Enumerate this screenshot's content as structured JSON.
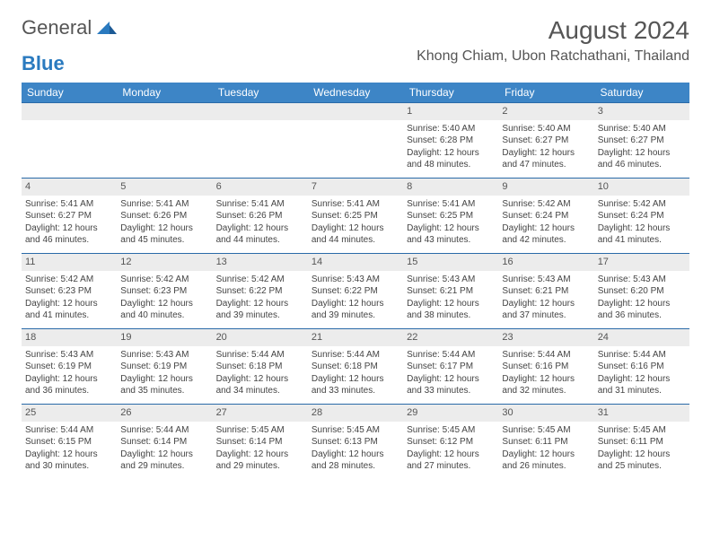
{
  "logo": {
    "text1": "General",
    "text2": "Blue"
  },
  "title": "August 2024",
  "location": "Khong Chiam, Ubon Ratchathani, Thailand",
  "colors": {
    "header_bg": "#3d85c6",
    "header_text": "#ffffff",
    "daynum_bg": "#ececec",
    "rule": "#2a6aa8",
    "body_text": "#444444",
    "title_text": "#555555",
    "logo_gray": "#555555",
    "logo_blue": "#2a7abf",
    "page_bg": "#ffffff"
  },
  "typography": {
    "month_title_pt": 28,
    "location_pt": 16,
    "header_cell_pt": 12,
    "daynum_pt": 11,
    "body_pt": 10,
    "logo_pt": 22
  },
  "day_headers": [
    "Sunday",
    "Monday",
    "Tuesday",
    "Wednesday",
    "Thursday",
    "Friday",
    "Saturday"
  ],
  "weeks": [
    [
      {
        "n": "",
        "empty": true
      },
      {
        "n": "",
        "empty": true
      },
      {
        "n": "",
        "empty": true
      },
      {
        "n": "",
        "empty": true
      },
      {
        "n": "1",
        "sr": "5:40 AM",
        "ss": "6:28 PM",
        "dl": "12 hours and 48 minutes."
      },
      {
        "n": "2",
        "sr": "5:40 AM",
        "ss": "6:27 PM",
        "dl": "12 hours and 47 minutes."
      },
      {
        "n": "3",
        "sr": "5:40 AM",
        "ss": "6:27 PM",
        "dl": "12 hours and 46 minutes."
      }
    ],
    [
      {
        "n": "4",
        "sr": "5:41 AM",
        "ss": "6:27 PM",
        "dl": "12 hours and 46 minutes."
      },
      {
        "n": "5",
        "sr": "5:41 AM",
        "ss": "6:26 PM",
        "dl": "12 hours and 45 minutes."
      },
      {
        "n": "6",
        "sr": "5:41 AM",
        "ss": "6:26 PM",
        "dl": "12 hours and 44 minutes."
      },
      {
        "n": "7",
        "sr": "5:41 AM",
        "ss": "6:25 PM",
        "dl": "12 hours and 44 minutes."
      },
      {
        "n": "8",
        "sr": "5:41 AM",
        "ss": "6:25 PM",
        "dl": "12 hours and 43 minutes."
      },
      {
        "n": "9",
        "sr": "5:42 AM",
        "ss": "6:24 PM",
        "dl": "12 hours and 42 minutes."
      },
      {
        "n": "10",
        "sr": "5:42 AM",
        "ss": "6:24 PM",
        "dl": "12 hours and 41 minutes."
      }
    ],
    [
      {
        "n": "11",
        "sr": "5:42 AM",
        "ss": "6:23 PM",
        "dl": "12 hours and 41 minutes."
      },
      {
        "n": "12",
        "sr": "5:42 AM",
        "ss": "6:23 PM",
        "dl": "12 hours and 40 minutes."
      },
      {
        "n": "13",
        "sr": "5:42 AM",
        "ss": "6:22 PM",
        "dl": "12 hours and 39 minutes."
      },
      {
        "n": "14",
        "sr": "5:43 AM",
        "ss": "6:22 PM",
        "dl": "12 hours and 39 minutes."
      },
      {
        "n": "15",
        "sr": "5:43 AM",
        "ss": "6:21 PM",
        "dl": "12 hours and 38 minutes."
      },
      {
        "n": "16",
        "sr": "5:43 AM",
        "ss": "6:21 PM",
        "dl": "12 hours and 37 minutes."
      },
      {
        "n": "17",
        "sr": "5:43 AM",
        "ss": "6:20 PM",
        "dl": "12 hours and 36 minutes."
      }
    ],
    [
      {
        "n": "18",
        "sr": "5:43 AM",
        "ss": "6:19 PM",
        "dl": "12 hours and 36 minutes."
      },
      {
        "n": "19",
        "sr": "5:43 AM",
        "ss": "6:19 PM",
        "dl": "12 hours and 35 minutes."
      },
      {
        "n": "20",
        "sr": "5:44 AM",
        "ss": "6:18 PM",
        "dl": "12 hours and 34 minutes."
      },
      {
        "n": "21",
        "sr": "5:44 AM",
        "ss": "6:18 PM",
        "dl": "12 hours and 33 minutes."
      },
      {
        "n": "22",
        "sr": "5:44 AM",
        "ss": "6:17 PM",
        "dl": "12 hours and 33 minutes."
      },
      {
        "n": "23",
        "sr": "5:44 AM",
        "ss": "6:16 PM",
        "dl": "12 hours and 32 minutes."
      },
      {
        "n": "24",
        "sr": "5:44 AM",
        "ss": "6:16 PM",
        "dl": "12 hours and 31 minutes."
      }
    ],
    [
      {
        "n": "25",
        "sr": "5:44 AM",
        "ss": "6:15 PM",
        "dl": "12 hours and 30 minutes."
      },
      {
        "n": "26",
        "sr": "5:44 AM",
        "ss": "6:14 PM",
        "dl": "12 hours and 29 minutes."
      },
      {
        "n": "27",
        "sr": "5:45 AM",
        "ss": "6:14 PM",
        "dl": "12 hours and 29 minutes."
      },
      {
        "n": "28",
        "sr": "5:45 AM",
        "ss": "6:13 PM",
        "dl": "12 hours and 28 minutes."
      },
      {
        "n": "29",
        "sr": "5:45 AM",
        "ss": "6:12 PM",
        "dl": "12 hours and 27 minutes."
      },
      {
        "n": "30",
        "sr": "5:45 AM",
        "ss": "6:11 PM",
        "dl": "12 hours and 26 minutes."
      },
      {
        "n": "31",
        "sr": "5:45 AM",
        "ss": "6:11 PM",
        "dl": "12 hours and 25 minutes."
      }
    ]
  ],
  "labels": {
    "sunrise": "Sunrise: ",
    "sunset": "Sunset: ",
    "daylight": "Daylight: "
  }
}
